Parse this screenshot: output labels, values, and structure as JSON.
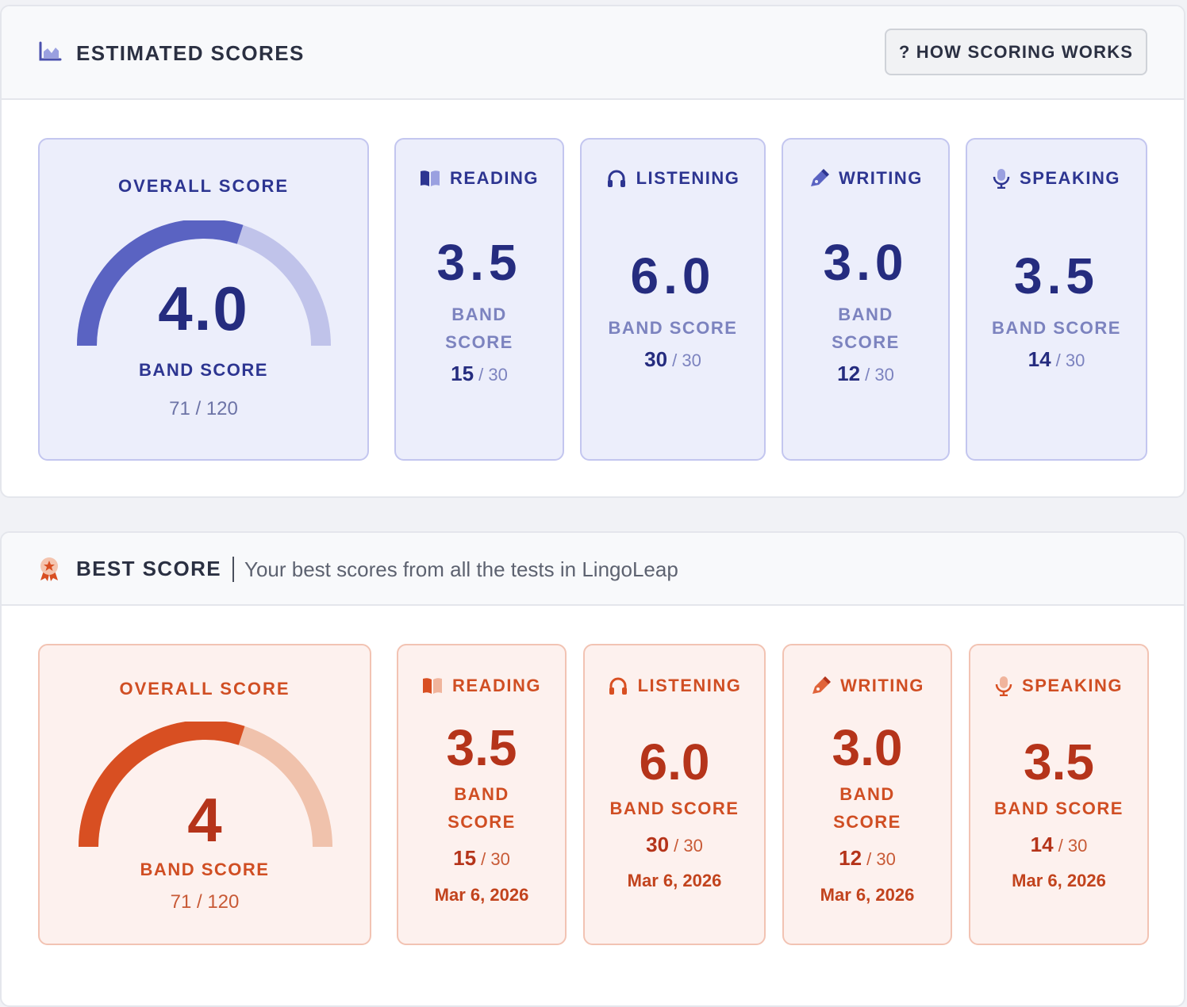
{
  "estimated": {
    "title": "ESTIMATED SCORES",
    "how_button": "? HOW SCORING WORKS",
    "overall": {
      "label": "OVERALL SCORE",
      "score": "4.0",
      "band_label": "BAND SCORE",
      "raw": "71 / 120",
      "gauge_fraction": 0.6
    },
    "skills": [
      {
        "name": "READING",
        "score": "3.5",
        "band_label": "BAND SCORE",
        "raw_score": "15",
        "raw_total": "/ 30",
        "icon": "book-icon"
      },
      {
        "name": "LISTENING",
        "score": "6.0",
        "band_label": "BAND SCORE",
        "raw_score": "30",
        "raw_total": "/ 30",
        "icon": "headphones-icon"
      },
      {
        "name": "WRITING",
        "score": "3.0",
        "band_label": "BAND SCORE",
        "raw_score": "12",
        "raw_total": "/ 30",
        "icon": "pen-icon"
      },
      {
        "name": "SPEAKING",
        "score": "3.5",
        "band_label": "BAND SCORE",
        "raw_score": "14",
        "raw_total": "/ 30",
        "icon": "microphone-icon"
      }
    ],
    "colors": {
      "accent": "#5a63c2",
      "light": "#c0c3ea",
      "text": "#252c7f"
    }
  },
  "best": {
    "title": "BEST SCORE",
    "subtitle": "Your best scores from all the tests in LingoLeap",
    "overall": {
      "label": "OVERALL SCORE",
      "score": "4",
      "band_label": "BAND SCORE",
      "raw": "71 / 120",
      "gauge_fraction": 0.6
    },
    "skills": [
      {
        "name": "READING",
        "score": "3.5",
        "band_label": "BAND SCORE",
        "raw_score": "15",
        "raw_total": "/ 30",
        "date": "Mar 6, 2026",
        "icon": "book-icon"
      },
      {
        "name": "LISTENING",
        "score": "6.0",
        "band_label": "BAND SCORE",
        "raw_score": "30",
        "raw_total": "/ 30",
        "date": "Mar 6, 2026",
        "icon": "headphones-icon"
      },
      {
        "name": "WRITING",
        "score": "3.0",
        "band_label": "BAND SCORE",
        "raw_score": "12",
        "raw_total": "/ 30",
        "date": "Mar 6, 2026",
        "icon": "pen-icon"
      },
      {
        "name": "SPEAKING",
        "score": "3.5",
        "band_label": "BAND SCORE",
        "raw_score": "14",
        "raw_total": "/ 30",
        "date": "Mar 6, 2026",
        "icon": "microphone-icon"
      }
    ],
    "colors": {
      "accent": "#d84f22",
      "light": "#f0c2ac",
      "text": "#b5341a"
    }
  }
}
